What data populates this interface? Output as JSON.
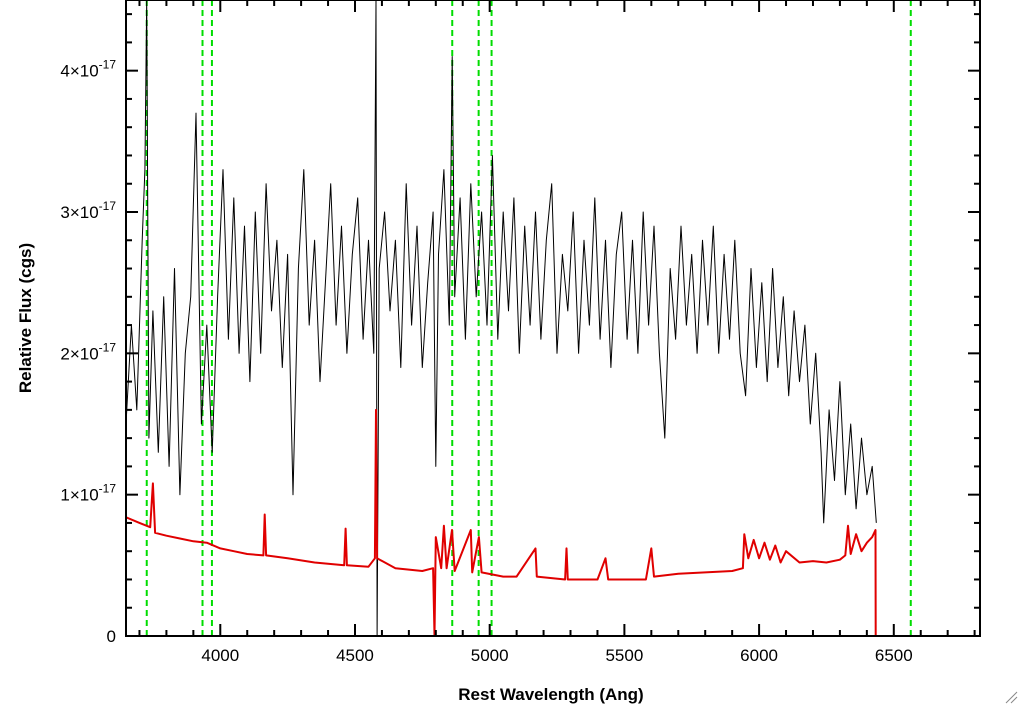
{
  "chart_data": {
    "type": "line",
    "title": "",
    "xlabel": "Rest Wavelength (Ang)",
    "ylabel": "Relative Flux (cgs)",
    "xlim": [
      3650,
      6820
    ],
    "ylim": [
      0,
      4.5e-17
    ],
    "x_ticks": [
      {
        "value": 4000,
        "label": "4000"
      },
      {
        "value": 4500,
        "label": "4500"
      },
      {
        "value": 5000,
        "label": "5000"
      },
      {
        "value": 5500,
        "label": "5500"
      },
      {
        "value": 6000,
        "label": "6000"
      },
      {
        "value": 6500,
        "label": "6500"
      }
    ],
    "y_ticks": [
      {
        "value": 0,
        "mantissa": "0",
        "exponent": ""
      },
      {
        "value": 1e-17,
        "mantissa": "1×10",
        "exponent": "-17"
      },
      {
        "value": 2e-17,
        "mantissa": "2×10",
        "exponent": "-17"
      },
      {
        "value": 3e-17,
        "mantissa": "3×10",
        "exponent": "-17"
      },
      {
        "value": 4e-17,
        "mantissa": "4×10",
        "exponent": "-17"
      }
    ],
    "grid": false,
    "legend": "none",
    "vertical_lines": {
      "color": "#00dd00",
      "style": "dashed",
      "x": [
        3727,
        3934,
        3969,
        4861,
        4959,
        5007,
        6563
      ]
    },
    "series": [
      {
        "color": "#000000",
        "points": [
          [
            3650,
            1.5e-17
          ],
          [
            3670,
            2.2e-17
          ],
          [
            3690,
            1.6e-17
          ],
          [
            3710,
            2.8e-17
          ],
          [
            3720,
            3.3e-17
          ],
          [
            3727,
            4.5e-17
          ],
          [
            3735,
            1.4e-17
          ],
          [
            3750,
            2.3e-17
          ],
          [
            3770,
            1.3e-17
          ],
          [
            3790,
            2.4e-17
          ],
          [
            3810,
            1.2e-17
          ],
          [
            3830,
            2.6e-17
          ],
          [
            3850,
            1e-17
          ],
          [
            3870,
            2e-17
          ],
          [
            3890,
            2.4e-17
          ],
          [
            3910,
            3.7e-17
          ],
          [
            3930,
            1.5e-17
          ],
          [
            3950,
            2.2e-17
          ],
          [
            3970,
            1.3e-17
          ],
          [
            3990,
            2.4e-17
          ],
          [
            4010,
            3.3e-17
          ],
          [
            4030,
            2.1e-17
          ],
          [
            4050,
            3.1e-17
          ],
          [
            4070,
            2e-17
          ],
          [
            4090,
            2.9e-17
          ],
          [
            4110,
            1.8e-17
          ],
          [
            4130,
            3e-17
          ],
          [
            4150,
            2e-17
          ],
          [
            4170,
            3.2e-17
          ],
          [
            4190,
            2.3e-17
          ],
          [
            4210,
            2.8e-17
          ],
          [
            4230,
            1.9e-17
          ],
          [
            4250,
            2.7e-17
          ],
          [
            4270,
            1e-17
          ],
          [
            4290,
            2.6e-17
          ],
          [
            4310,
            3.3e-17
          ],
          [
            4330,
            2.2e-17
          ],
          [
            4350,
            2.8e-17
          ],
          [
            4370,
            1.8e-17
          ],
          [
            4390,
            2.5e-17
          ],
          [
            4410,
            3.2e-17
          ],
          [
            4430,
            2.2e-17
          ],
          [
            4450,
            2.9e-17
          ],
          [
            4470,
            2e-17
          ],
          [
            4490,
            2.7e-17
          ],
          [
            4510,
            3.1e-17
          ],
          [
            4530,
            2.1e-17
          ],
          [
            4550,
            2.8e-17
          ],
          [
            4570,
            2e-17
          ],
          [
            4578,
            4.5e-17
          ],
          [
            4582,
            0
          ],
          [
            4590,
            2.6e-17
          ],
          [
            4610,
            3e-17
          ],
          [
            4630,
            2.3e-17
          ],
          [
            4650,
            2.8e-17
          ],
          [
            4670,
            1.9e-17
          ],
          [
            4690,
            3.2e-17
          ],
          [
            4710,
            2.2e-17
          ],
          [
            4730,
            2.9e-17
          ],
          [
            4750,
            1.9e-17
          ],
          [
            4770,
            2.5e-17
          ],
          [
            4790,
            3e-17
          ],
          [
            4800,
            1.2e-17
          ],
          [
            4810,
            2.7e-17
          ],
          [
            4830,
            3.3e-17
          ],
          [
            4850,
            2.2e-17
          ],
          [
            4861,
            4.1e-17
          ],
          [
            4870,
            2.4e-17
          ],
          [
            4890,
            3.1e-17
          ],
          [
            4910,
            2.1e-17
          ],
          [
            4930,
            3.2e-17
          ],
          [
            4950,
            2.4e-17
          ],
          [
            4970,
            3e-17
          ],
          [
            4990,
            2.2e-17
          ],
          [
            5010,
            3.4e-17
          ],
          [
            5030,
            2.1e-17
          ],
          [
            5050,
            3e-17
          ],
          [
            5070,
            2.3e-17
          ],
          [
            5090,
            3.1e-17
          ],
          [
            5110,
            2e-17
          ],
          [
            5130,
            2.9e-17
          ],
          [
            5150,
            2.2e-17
          ],
          [
            5170,
            3e-17
          ],
          [
            5190,
            2.1e-17
          ],
          [
            5210,
            2.8e-17
          ],
          [
            5230,
            3.2e-17
          ],
          [
            5250,
            2e-17
          ],
          [
            5270,
            2.7e-17
          ],
          [
            5290,
            2.3e-17
          ],
          [
            5310,
            3e-17
          ],
          [
            5330,
            2e-17
          ],
          [
            5350,
            2.8e-17
          ],
          [
            5370,
            2.2e-17
          ],
          [
            5390,
            3.1e-17
          ],
          [
            5410,
            2.1e-17
          ],
          [
            5430,
            2.8e-17
          ],
          [
            5450,
            1.9e-17
          ],
          [
            5470,
            2.7e-17
          ],
          [
            5490,
            3e-17
          ],
          [
            5510,
            2.1e-17
          ],
          [
            5530,
            2.8e-17
          ],
          [
            5550,
            2e-17
          ],
          [
            5570,
            3e-17
          ],
          [
            5590,
            2.2e-17
          ],
          [
            5610,
            2.9e-17
          ],
          [
            5630,
            2e-17
          ],
          [
            5650,
            1.4e-17
          ],
          [
            5670,
            2.6e-17
          ],
          [
            5690,
            2.1e-17
          ],
          [
            5710,
            2.9e-17
          ],
          [
            5730,
            2.2e-17
          ],
          [
            5750,
            2.7e-17
          ],
          [
            5770,
            2e-17
          ],
          [
            5790,
            2.8e-17
          ],
          [
            5810,
            2.2e-17
          ],
          [
            5830,
            2.9e-17
          ],
          [
            5850,
            2e-17
          ],
          [
            5870,
            2.7e-17
          ],
          [
            5890,
            2.1e-17
          ],
          [
            5910,
            2.8e-17
          ],
          [
            5930,
            2e-17
          ],
          [
            5950,
            1.7e-17
          ],
          [
            5970,
            2.6e-17
          ],
          [
            5990,
            1.9e-17
          ],
          [
            6010,
            2.5e-17
          ],
          [
            6030,
            1.8e-17
          ],
          [
            6050,
            2.6e-17
          ],
          [
            6070,
            1.9e-17
          ],
          [
            6090,
            2.4e-17
          ],
          [
            6110,
            1.7e-17
          ],
          [
            6130,
            2.3e-17
          ],
          [
            6150,
            1.8e-17
          ],
          [
            6170,
            2.2e-17
          ],
          [
            6190,
            1.5e-17
          ],
          [
            6210,
            2e-17
          ],
          [
            6230,
            1.3e-17
          ],
          [
            6240,
            8e-18
          ],
          [
            6260,
            1.6e-17
          ],
          [
            6280,
            1.1e-17
          ],
          [
            6300,
            1.8e-17
          ],
          [
            6320,
            1e-17
          ],
          [
            6340,
            1.5e-17
          ],
          [
            6360,
            9e-18
          ],
          [
            6380,
            1.4e-17
          ],
          [
            6400,
            1e-17
          ],
          [
            6420,
            1.2e-17
          ],
          [
            6435,
            8e-18
          ]
        ]
      },
      {
        "color": "#e00000",
        "points": [
          [
            3650,
            8.4e-18
          ],
          [
            3700,
            8e-18
          ],
          [
            3740,
            7.7e-18
          ],
          [
            3750,
            1.08e-17
          ],
          [
            3758,
            7.3e-18
          ],
          [
            3800,
            7.1e-18
          ],
          [
            3850,
            6.9e-18
          ],
          [
            3900,
            6.7e-18
          ],
          [
            3950,
            6.6e-18
          ],
          [
            4000,
            6.2e-18
          ],
          [
            4050,
            6e-18
          ],
          [
            4100,
            5.8e-18
          ],
          [
            4160,
            5.7e-18
          ],
          [
            4165,
            8.6e-18
          ],
          [
            4170,
            5.7e-18
          ],
          [
            4250,
            5.5e-18
          ],
          [
            4350,
            5.2e-18
          ],
          [
            4460,
            5e-18
          ],
          [
            4465,
            7.6e-18
          ],
          [
            4470,
            5e-18
          ],
          [
            4550,
            4.9e-18
          ],
          [
            4574,
            5.5e-18
          ],
          [
            4578,
            1.6e-17
          ],
          [
            4582,
            5.5e-18
          ],
          [
            4650,
            4.8e-18
          ],
          [
            4700,
            4.7e-18
          ],
          [
            4750,
            4.6e-18
          ],
          [
            4790,
            4.8e-18
          ],
          [
            4795,
            0
          ],
          [
            4800,
            7e-18
          ],
          [
            4820,
            4.8e-18
          ],
          [
            4830,
            7.8e-18
          ],
          [
            4840,
            4.8e-18
          ],
          [
            4860,
            7.5e-18
          ],
          [
            4870,
            4.6e-18
          ],
          [
            4930,
            7.5e-18
          ],
          [
            4935,
            4.5e-18
          ],
          [
            4960,
            7e-18
          ],
          [
            4970,
            4.5e-18
          ],
          [
            5050,
            4.2e-18
          ],
          [
            5100,
            4.2e-18
          ],
          [
            5170,
            6.2e-18
          ],
          [
            5175,
            4.2e-18
          ],
          [
            5280,
            4e-18
          ],
          [
            5285,
            6.2e-18
          ],
          [
            5290,
            4e-18
          ],
          [
            5400,
            4e-18
          ],
          [
            5430,
            5.5e-18
          ],
          [
            5440,
            4e-18
          ],
          [
            5550,
            4e-18
          ],
          [
            5580,
            4e-18
          ],
          [
            5600,
            6.2e-18
          ],
          [
            5610,
            4.2e-18
          ],
          [
            5700,
            4.4e-18
          ],
          [
            5800,
            4.5e-18
          ],
          [
            5900,
            4.6e-18
          ],
          [
            5940,
            4.8e-18
          ],
          [
            5945,
            7.2e-18
          ],
          [
            5960,
            5.5e-18
          ],
          [
            5980,
            6.8e-18
          ],
          [
            6000,
            5.5e-18
          ],
          [
            6020,
            6.6e-18
          ],
          [
            6040,
            5.4e-18
          ],
          [
            6060,
            6.4e-18
          ],
          [
            6080,
            5.2e-18
          ],
          [
            6100,
            6e-18
          ],
          [
            6150,
            5.2e-18
          ],
          [
            6200,
            5.3e-18
          ],
          [
            6250,
            5.2e-18
          ],
          [
            6300,
            5.4e-18
          ],
          [
            6320,
            5.7e-18
          ],
          [
            6330,
            7.8e-18
          ],
          [
            6340,
            5.8e-18
          ],
          [
            6360,
            7.2e-18
          ],
          [
            6380,
            6e-18
          ],
          [
            6400,
            6.6e-18
          ],
          [
            6420,
            7e-18
          ],
          [
            6432,
            7.5e-18
          ],
          [
            6433,
            0
          ],
          [
            6820,
            0
          ]
        ]
      }
    ]
  }
}
